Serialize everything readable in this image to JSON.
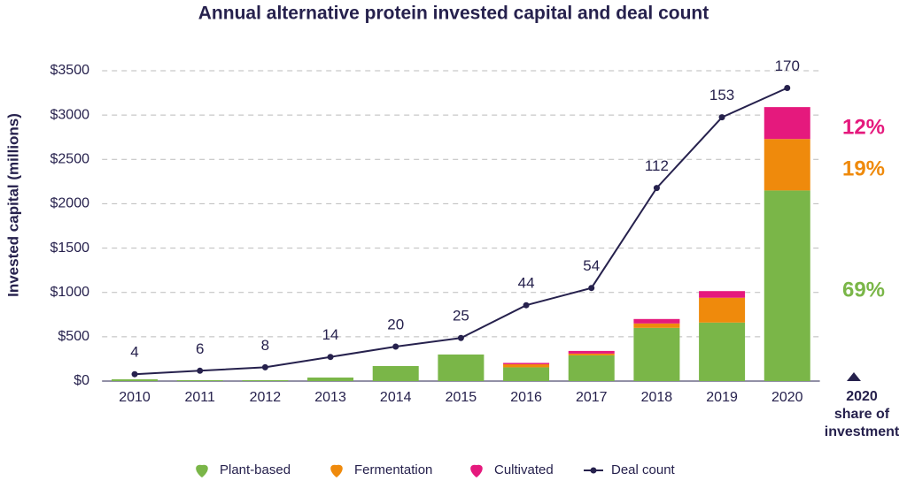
{
  "chart_data": {
    "type": "bar-line",
    "title": "Annual alternative protein invested capital and deal count",
    "y_label": "Invested capital (millions)",
    "categories": [
      "2010",
      "2011",
      "2012",
      "2013",
      "2014",
      "2015",
      "2016",
      "2017",
      "2018",
      "2019",
      "2020"
    ],
    "series": [
      {
        "name": "Plant-based",
        "type": "bar",
        "color": "#7ab648",
        "values": [
          20,
          10,
          10,
          40,
          170,
          300,
          155,
          290,
          600,
          660,
          2150
        ],
        "share": 69,
        "share_label": "69%"
      },
      {
        "name": "Fermentation",
        "type": "bar",
        "color": "#ef8a0c",
        "values": [
          0,
          0,
          0,
          0,
          0,
          0,
          35,
          20,
          50,
          280,
          580
        ],
        "share": 19,
        "share_label": "19%"
      },
      {
        "name": "Cultivated",
        "type": "bar",
        "color": "#e5197d",
        "values": [
          0,
          0,
          0,
          0,
          0,
          0,
          15,
          30,
          50,
          75,
          360
        ],
        "share": 12,
        "share_label": "12%"
      },
      {
        "name": "Deal count",
        "type": "line",
        "axis": "y2",
        "color": "#26214d",
        "values": [
          4,
          6,
          8,
          14,
          20,
          25,
          44,
          54,
          112,
          153,
          170
        ]
      }
    ],
    "ylim": [
      0,
      3500
    ],
    "yticks": [
      {
        "value": 0,
        "label": "$0"
      },
      {
        "value": 500,
        "label": "$500"
      },
      {
        "value": 1000,
        "label": "$1000"
      },
      {
        "value": 1500,
        "label": "$1500"
      },
      {
        "value": 2000,
        "label": "$2000"
      },
      {
        "value": 2500,
        "label": "$2500"
      },
      {
        "value": 3000,
        "label": "$3000"
      },
      {
        "value": 3500,
        "label": "$3500"
      }
    ],
    "y2lim": [
      0,
      180
    ],
    "grid": true,
    "share_title": [
      "2020",
      "share of",
      "investment"
    ],
    "legend": "bottom"
  }
}
